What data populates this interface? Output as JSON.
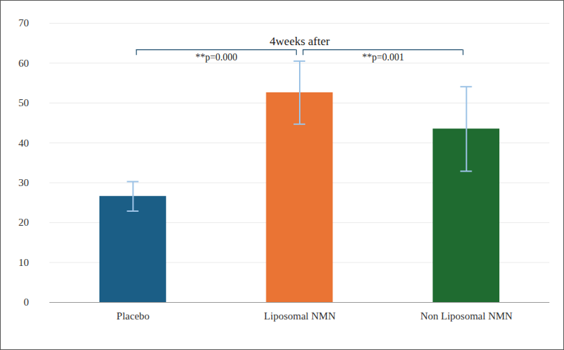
{
  "chart_data": {
    "type": "bar",
    "title": "4weeks after",
    "categories": [
      "Placebo",
      "Liposomal NMN",
      "Non Liposomal NMN"
    ],
    "values": [
      26.6,
      52.6,
      43.5
    ],
    "errors": [
      3.7,
      7.9,
      10.6
    ],
    "colors": [
      "#1b5e86",
      "#ea7434",
      "#1f6b30"
    ],
    "ylim": [
      0,
      70
    ],
    "yticks": [
      0,
      10,
      20,
      30,
      40,
      50,
      60,
      70
    ],
    "grid": true,
    "annotations": [
      {
        "text": "**p=0.000",
        "from": "Placebo",
        "to": "Liposomal NMN"
      },
      {
        "text": "**p=0.001",
        "from": "Liposomal NMN",
        "to": "Non Liposomal NMN"
      }
    ]
  }
}
